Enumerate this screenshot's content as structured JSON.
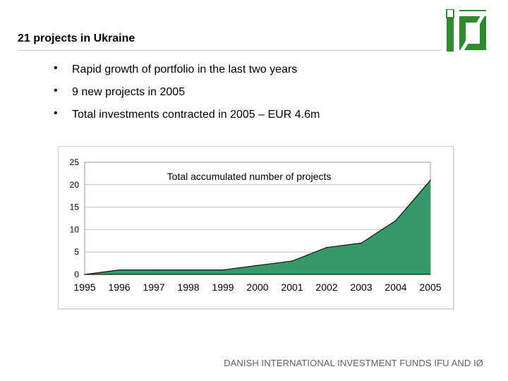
{
  "slide": {
    "title": "21 projects in Ukraine",
    "bullets": [
      "Rapid growth of portfolio in the last two years",
      "9 new projects in 2005",
      "Total investments contracted in 2005 – EUR 4.6m"
    ],
    "footer": "DANISH INTERNATIONAL INVESTMENT FUNDS IFU AND IØ"
  },
  "colors": {
    "area_fill": "#36996a",
    "area_line": "#111111",
    "logo_green": "#2e8b2e",
    "gridline": "#c0c0c0"
  },
  "chart_data": {
    "type": "area",
    "title": "Total accumulated number of projects",
    "x": [
      "1995",
      "1996",
      "1997",
      "1998",
      "1999",
      "2000",
      "2001",
      "2002",
      "2003",
      "2004",
      "2005"
    ],
    "values": [
      0,
      1,
      1,
      1,
      1,
      2,
      3,
      6,
      7,
      12,
      21
    ],
    "ylim": [
      0,
      25
    ],
    "yticks": [
      "0",
      "5",
      "10",
      "15",
      "20",
      "25"
    ],
    "xlabel": "",
    "ylabel": "",
    "grid": true
  }
}
